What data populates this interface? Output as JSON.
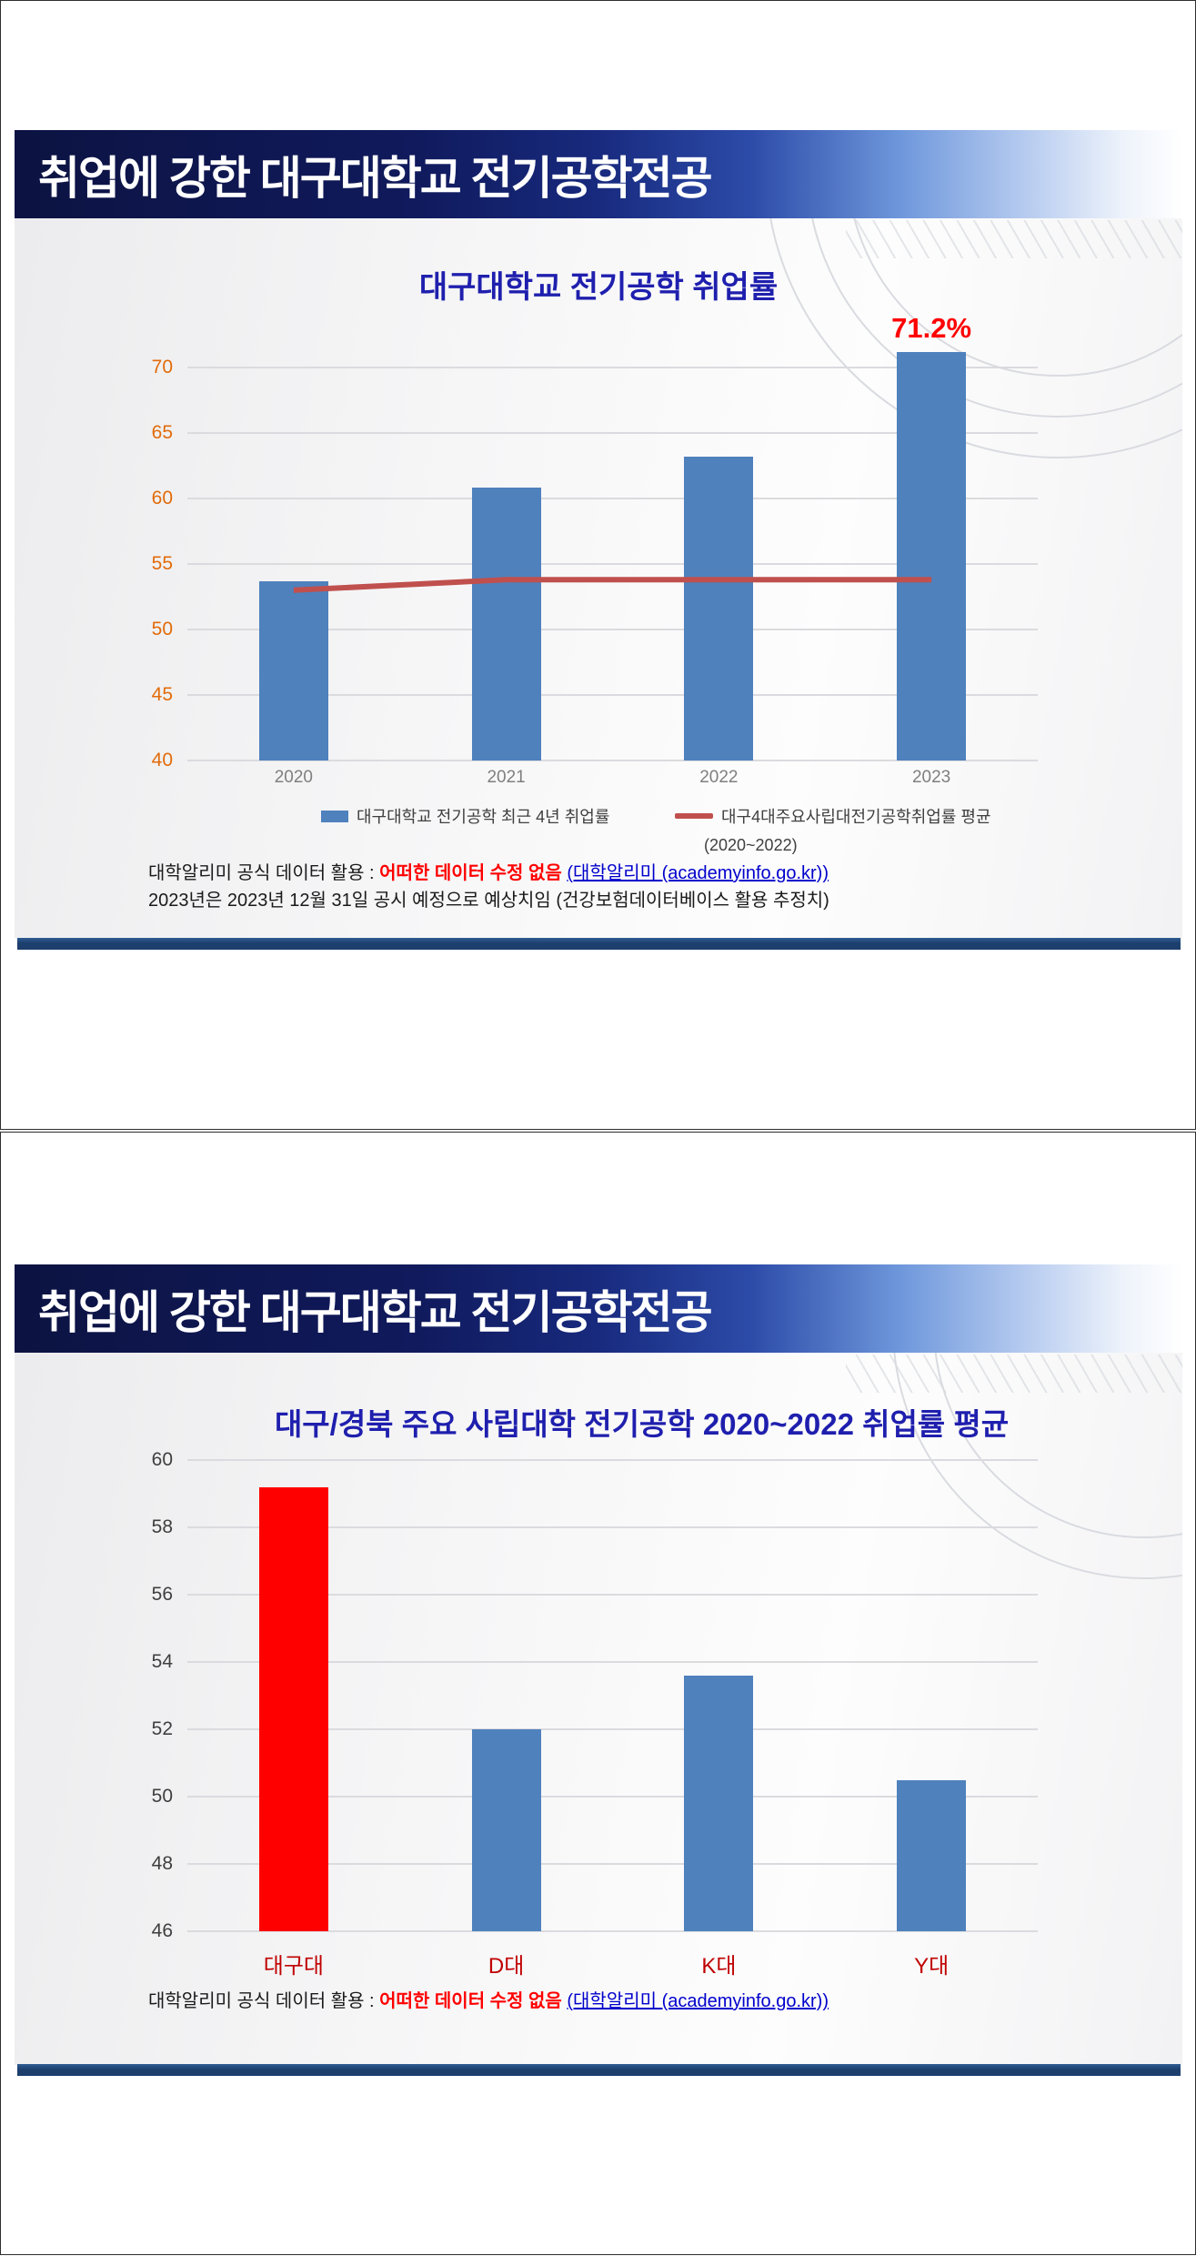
{
  "slide1": {
    "banner_title": "취업에 강한 대구대학교 전기공학전공",
    "footnote": {
      "prefix": "대학알리미 공식 데이터 활용 : ",
      "emphasis": "어떠한 데이터 수정 없음",
      "link": "(대학알리미 (academyinfo.go.kr))",
      "line2": "2023년은 2023년 12월 31일 공시 예정으로 예상치임 (건강보험데이터베이스 활용 추정치)"
    }
  },
  "slide2": {
    "banner_title": "취업에 강한 대구대학교 전기공학전공",
    "footnote": {
      "prefix": "대학알리미 공식 데이터 활용 : ",
      "emphasis": "어떠한 데이터 수정 없음",
      "link": "(대학알리미 (academyinfo.go.kr))"
    }
  },
  "chart_data": [
    {
      "id": "daegu-univ-ee-employment-rate",
      "type": "bar",
      "title": "대구대학교 전기공학 취업률",
      "categories": [
        "2020",
        "2021",
        "2022",
        "2023"
      ],
      "series": [
        {
          "type": "bar",
          "name": "대구대학교 전기공학 최근 4년 취업률",
          "color": "#4F81BD",
          "values": [
            53.7,
            60.8,
            63.2,
            71.2
          ]
        },
        {
          "type": "line",
          "name": "대구4대주요사립대전기공학취업률 평균",
          "sub_label": "(2020~2022)",
          "color": "#C0504D",
          "values": [
            53.0,
            53.8,
            53.8,
            53.8
          ]
        }
      ],
      "annotation": {
        "text": "71.2%",
        "category_index": 3,
        "color": "#FF0000"
      },
      "ylim": [
        40,
        70
      ],
      "yticks": [
        40,
        45,
        50,
        55,
        60,
        65,
        70
      ],
      "ytick_color": "#E26B0A",
      "xtick_color": "#7F7F7F",
      "grid": true,
      "legend_position": "bottom"
    },
    {
      "id": "regional-private-univ-ee-average",
      "type": "bar",
      "title": "대구/경북 주요 사립대학  전기공학 2020~2022 취업률 평균",
      "categories": [
        "대구대",
        "D대",
        "K대",
        "Y대"
      ],
      "values": [
        59.2,
        52.0,
        53.6,
        50.5
      ],
      "bar_colors": [
        "#FF0000",
        "#4F81BD",
        "#4F81BD",
        "#4F81BD"
      ],
      "ylim": [
        46,
        60
      ],
      "yticks": [
        46,
        48,
        50,
        52,
        54,
        56,
        58,
        60
      ],
      "ytick_color": "#3F3F3F",
      "xtick_color": "#C00000",
      "grid": true,
      "legend_position": "none"
    }
  ]
}
